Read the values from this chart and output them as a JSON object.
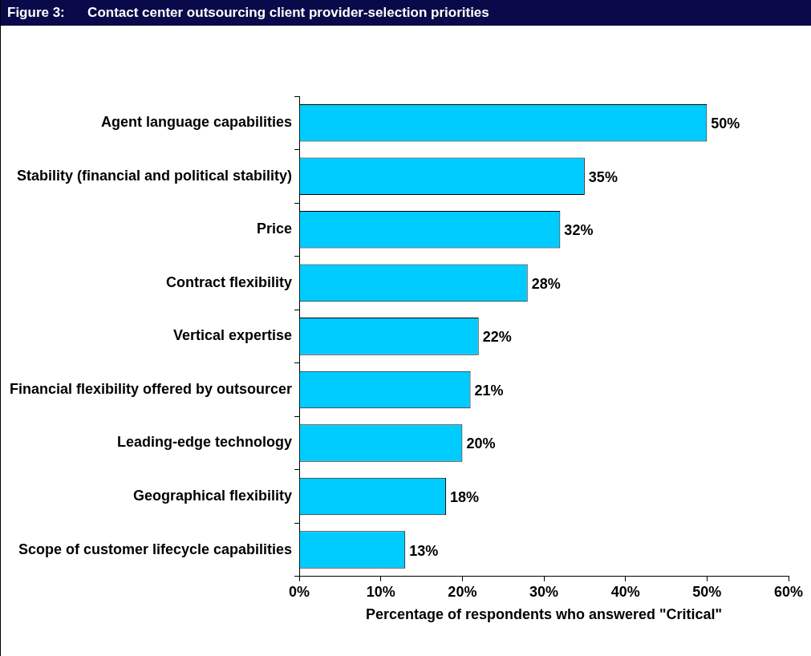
{
  "chart_data": {
    "type": "bar",
    "orientation": "horizontal",
    "title": "Figure 3:      Contact center outsourcing client provider-selection priorities",
    "categories": [
      "Agent language capabilities",
      "Stability (financial and political stability)",
      "Price",
      "Contract flexibility",
      "Vertical expertise",
      "Financial flexibility offered by outsourcer",
      "Leading-edge technology",
      "Geographical flexibility",
      "Scope of customer lifecycle capabilities"
    ],
    "values": [
      50,
      35,
      32,
      28,
      22,
      21,
      20,
      18,
      13
    ],
    "color": "#00ccff",
    "value_labels": [
      "50%",
      "35%",
      "32%",
      "28%",
      "22%",
      "21%",
      "20%",
      "18%",
      "13%"
    ],
    "xlabel": "Percentage of respondents who answered \"Critical\"",
    "xlim": [
      0,
      60
    ],
    "xticks": [
      {
        "value": 0,
        "label": "0%"
      },
      {
        "value": 10,
        "label": "10%"
      },
      {
        "value": 20,
        "label": "20%"
      },
      {
        "value": 30,
        "label": "30%"
      },
      {
        "value": 40,
        "label": "40%"
      },
      {
        "value": 50,
        "label": "50%"
      },
      {
        "value": 60,
        "label": "60%"
      }
    ],
    "grid": false,
    "legend": false
  }
}
